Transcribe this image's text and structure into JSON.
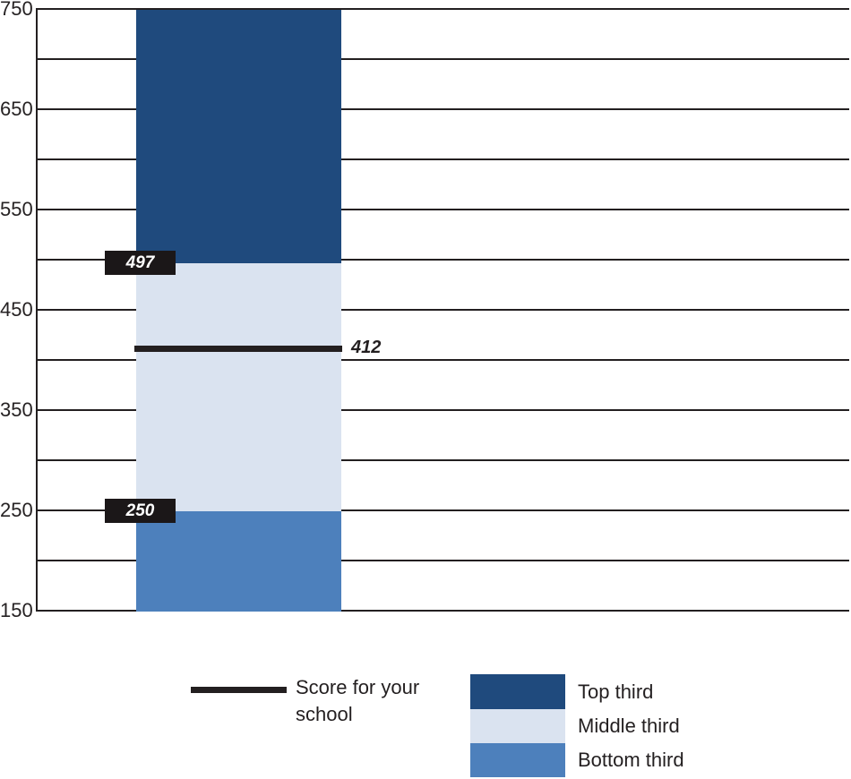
{
  "chart_data": {
    "type": "bar",
    "title": "",
    "description": "Stacked score-band column with school score marker line",
    "axis": {
      "min": 150,
      "max": 750,
      "grid_step": 50,
      "label_step": 100,
      "tick_labels": [
        "750",
        "650",
        "550",
        "450",
        "350",
        "250",
        "150"
      ],
      "grid": true
    },
    "segments": [
      {
        "name": "Top third",
        "from": 497,
        "to": 750,
        "color": "#1f4a7d"
      },
      {
        "name": "Middle third",
        "from": 250,
        "to": 497,
        "color": "#dae3f0"
      },
      {
        "name": "Bottom third",
        "from": 150,
        "to": 250,
        "color": "#4d80bc"
      }
    ],
    "boundary_labels": [
      {
        "value": 497,
        "label": "497"
      },
      {
        "value": 250,
        "label": "250"
      }
    ],
    "school_score": {
      "value": 412,
      "label": "412"
    },
    "legend": [
      {
        "type": "line",
        "label": "Score for your school",
        "color": "#231f20"
      },
      {
        "type": "swatch",
        "label": "Top third",
        "color": "#1f4a7d"
      },
      {
        "type": "swatch",
        "label": "Middle third",
        "color": "#dae3f0"
      },
      {
        "type": "swatch",
        "label": "Bottom third",
        "color": "#4d80bc"
      }
    ],
    "colors": {
      "grid": "#231f20",
      "tick_text": "#262223",
      "marker_line": "#231f20",
      "boundary_box_bg": "#1b1718",
      "boundary_box_text": "#ffffff"
    }
  }
}
